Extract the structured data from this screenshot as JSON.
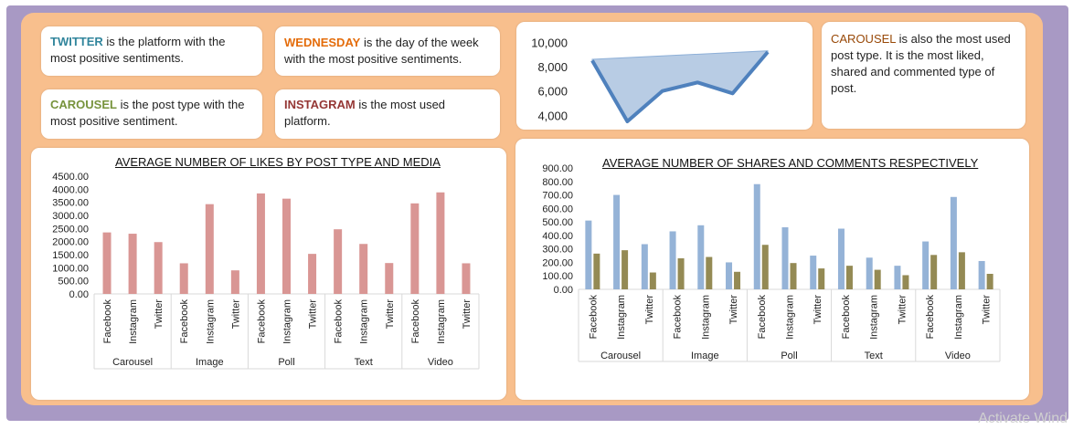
{
  "insights": [
    {
      "keyword": "TWITTER",
      "color": "#31859c",
      "text": " is the platform with the most positive sentiments."
    },
    {
      "keyword": "WEDNESDAY",
      "color": "#e46c0a",
      "text": " is the day of the week with the most positive sentiments."
    },
    {
      "keyword": "CAROUSEL",
      "color": "#77933c",
      "text": " is the post type with the most positive sentiment."
    },
    {
      "keyword": "INSTAGRAM",
      "color": "#953735",
      "text": " is the most used platform."
    },
    {
      "keyword": "CAROUSEL",
      "color": "#984807",
      "text": " is also the most used post type. It is the most liked, shared and commented type of post."
    }
  ],
  "watermark": "Activate Wind",
  "chart_data": [
    {
      "type": "area",
      "title": "",
      "ytick_labels": [
        "10,000",
        "8,000",
        "6,000",
        "4,000"
      ],
      "ylim": [
        3800,
        10400
      ],
      "values": [
        8500,
        3500,
        6000,
        6700,
        5800,
        9200
      ],
      "colors": {
        "fill": "#b8cce4",
        "line": "#4f81bd"
      }
    },
    {
      "type": "bar",
      "title": "AVERAGE NUMBER OF LIKES BY POST TYPE AND MEDIA",
      "groups": [
        "Carousel",
        "Image",
        "Poll",
        "Text",
        "Video"
      ],
      "platforms": [
        "Facebook",
        "Instagram",
        "Twitter"
      ],
      "ytick_labels": [
        "4500.00",
        "4000.00",
        "3500.00",
        "3000.00",
        "2500.00",
        "2000.00",
        "1500.00",
        "1000.00",
        "500.00",
        "0.00"
      ],
      "ylim": [
        0,
        4500
      ],
      "series": [
        {
          "values": [
            2350,
            2300,
            1980,
            1170,
            3430,
            900,
            3840,
            3640,
            1530,
            2470,
            1910,
            1180,
            3460,
            3880,
            1170
          ]
        }
      ],
      "colors": {
        "bar": "#d99694"
      },
      "grid": false
    },
    {
      "type": "bar",
      "title": "AVERAGE NUMBER OF SHARES AND COMMENTS RESPECTIVELY",
      "groups": [
        "Carousel",
        "Image",
        "Poll",
        "Text",
        "Video"
      ],
      "platforms": [
        "Facebook",
        "Instagram",
        "Twitter"
      ],
      "ytick_labels": [
        "900.00",
        "800.00",
        "700.00",
        "600.00",
        "500.00",
        "400.00",
        "300.00",
        "200.00",
        "100.00",
        "0.00"
      ],
      "ylim": [
        0,
        900
      ],
      "series": [
        {
          "values": [
            510,
            700,
            335,
            430,
            475,
            200,
            780,
            460,
            250,
            450,
            235,
            175,
            355,
            685,
            210
          ]
        },
        {
          "values": [
            265,
            290,
            125,
            230,
            240,
            130,
            330,
            195,
            155,
            175,
            145,
            105,
            255,
            275,
            115
          ]
        }
      ],
      "colors": {
        "bar": "#95b3d7",
        "bar2": "#948a54"
      },
      "grid": false
    }
  ]
}
